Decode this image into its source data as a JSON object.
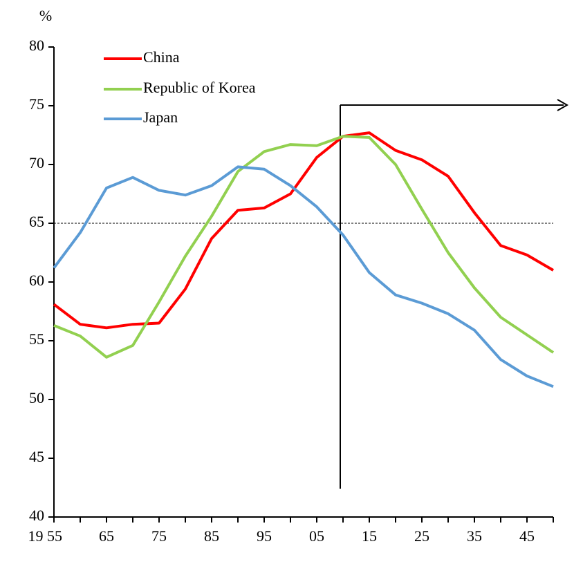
{
  "chart_data": {
    "type": "line",
    "y_axis_label": "%",
    "categories": [
      "19 55",
      null,
      "65",
      null,
      "75",
      null,
      "85",
      null,
      "95",
      null,
      "05",
      null,
      "15",
      null,
      "25",
      null,
      "35",
      null,
      "45",
      null
    ],
    "series": [
      {
        "name": "China",
        "color": "#ff0000",
        "values": [
          58.1,
          56.4,
          56.1,
          56.4,
          56.5,
          59.4,
          63.7,
          66.1,
          66.3,
          67.5,
          70.6,
          72.4,
          72.7,
          71.2,
          70.4,
          69.0,
          65.9,
          63.1,
          62.3,
          61.0
        ]
      },
      {
        "name": "Republic of Korea",
        "color": "#92d050",
        "values": [
          56.3,
          55.4,
          53.6,
          54.6,
          58.3,
          62.2,
          65.6,
          69.4,
          71.1,
          71.7,
          71.6,
          72.4,
          72.3,
          70.0,
          66.2,
          62.5,
          59.5,
          57.0,
          55.5,
          54.0
        ]
      },
      {
        "name": "Japan",
        "color": "#5b9bd5",
        "values": [
          61.2,
          64.2,
          68.0,
          68.9,
          67.8,
          67.4,
          68.2,
          69.8,
          69.6,
          68.2,
          66.4,
          64.0,
          60.8,
          58.9,
          58.2,
          57.3,
          55.9,
          53.4,
          52.0,
          51.1
        ]
      }
    ],
    "ylim": [
      40,
      80
    ],
    "yticks": [
      40,
      45,
      50,
      55,
      60,
      65,
      70,
      75,
      80
    ],
    "reference_line": 65,
    "legend": "upper left"
  }
}
